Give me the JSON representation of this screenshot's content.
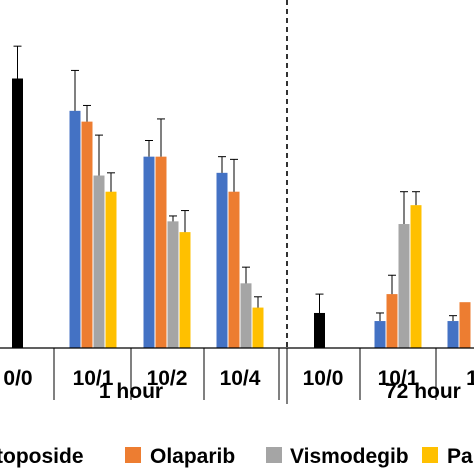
{
  "chart_data": {
    "type": "bar",
    "groups": [
      {
        "label": "1 hour",
        "categories": [
          "0/0",
          "10/1",
          "10/2",
          "10/4"
        ]
      },
      {
        "label": "72 hour",
        "categories": [
          "10/0",
          "10/1",
          "1"
        ]
      }
    ],
    "series": [
      {
        "name": "toposide",
        "color": "#000000"
      },
      {
        "name": "Olaparib",
        "color": "#ED7D31"
      },
      {
        "name": "Vismodegib",
        "color": "#A5A5A5"
      },
      {
        "name": "Pa",
        "color": "#FFC000"
      }
    ],
    "unnamed_series_color": "#4472C4",
    "bars": [
      {
        "category": "0/0",
        "group": 0,
        "series": "toposide",
        "value": 100,
        "error": 12
      },
      {
        "category": "10/1",
        "group": 0,
        "series": "unnamed",
        "value": 88,
        "error": 15
      },
      {
        "category": "10/1",
        "group": 0,
        "series": "Olaparib",
        "value": 84,
        "error": 6
      },
      {
        "category": "10/1",
        "group": 0,
        "series": "Vismodegib",
        "value": 64,
        "error": 15
      },
      {
        "category": "10/1",
        "group": 0,
        "series": "Pa",
        "value": 58,
        "error": 7
      },
      {
        "category": "10/2",
        "group": 0,
        "series": "unnamed",
        "value": 71,
        "error": 6
      },
      {
        "category": "10/2",
        "group": 0,
        "series": "Olaparib",
        "value": 71,
        "error": 14
      },
      {
        "category": "10/2",
        "group": 0,
        "series": "Vismodegib",
        "value": 47,
        "error": 2
      },
      {
        "category": "10/2",
        "group": 0,
        "series": "Pa",
        "value": 43,
        "error": 8
      },
      {
        "category": "10/4",
        "group": 0,
        "series": "unnamed",
        "value": 65,
        "error": 6
      },
      {
        "category": "10/4",
        "group": 0,
        "series": "Olaparib",
        "value": 58,
        "error": 12
      },
      {
        "category": "10/4",
        "group": 0,
        "series": "Vismodegib",
        "value": 24,
        "error": 6
      },
      {
        "category": "10/4",
        "group": 0,
        "series": "Pa",
        "value": 15,
        "error": 4
      },
      {
        "category": "10/0",
        "group": 1,
        "series": "toposide",
        "value": 13,
        "error": 7
      },
      {
        "category": "10/1",
        "group": 1,
        "series": "unnamed",
        "value": 10,
        "error": 3
      },
      {
        "category": "10/1",
        "group": 1,
        "series": "Olaparib",
        "value": 20,
        "error": 7
      },
      {
        "category": "10/1",
        "group": 1,
        "series": "Vismodegib",
        "value": 46,
        "error": 12
      },
      {
        "category": "10/1",
        "group": 1,
        "series": "Pa",
        "value": 53,
        "error": 5
      },
      {
        "category": "1",
        "group": 1,
        "series": "unnamed",
        "value": 10,
        "error": 2
      },
      {
        "category": "1",
        "group": 1,
        "series": "Olaparib",
        "value": 17,
        "error": 0
      }
    ],
    "ylim": [
      0,
      120
    ],
    "title": "",
    "xlabel": "",
    "ylabel": "",
    "grid": false,
    "legend_position": "bottom",
    "group_separator": "dashed"
  }
}
